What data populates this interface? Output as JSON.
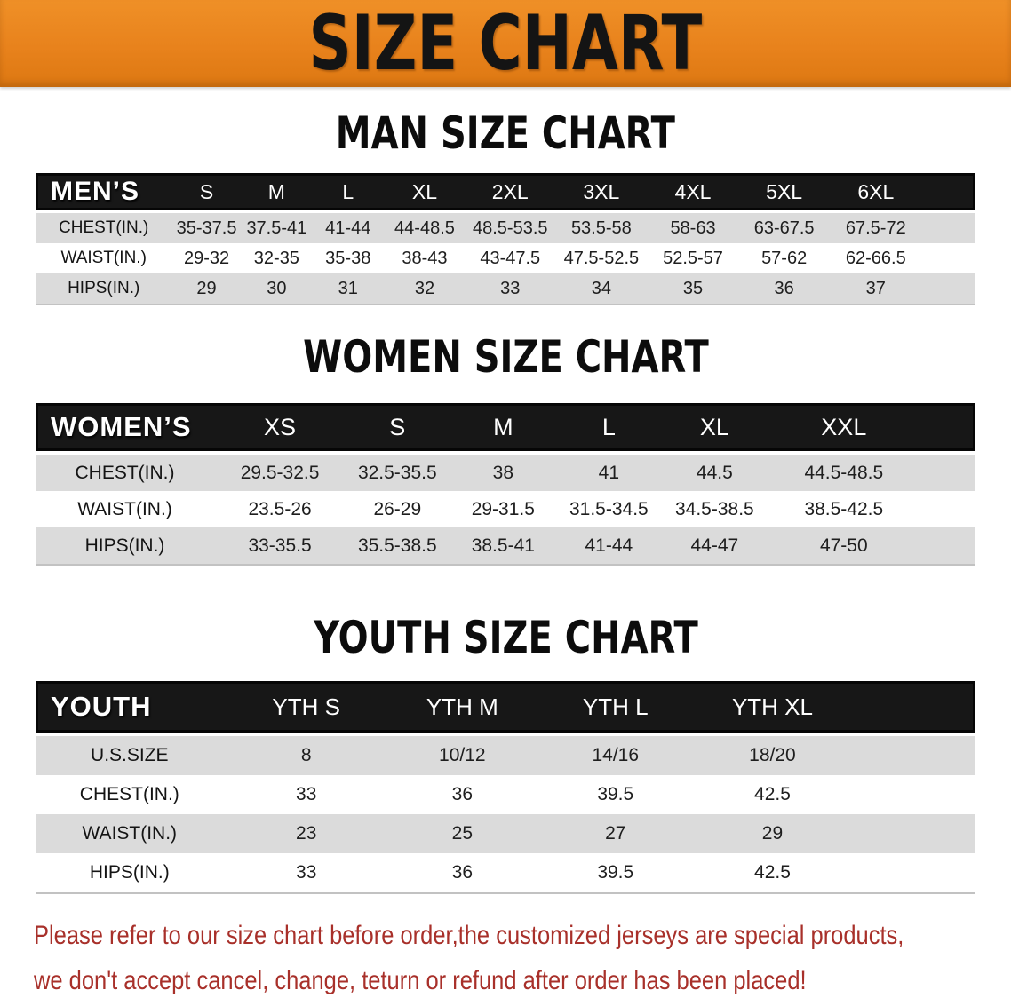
{
  "banner": {
    "title": "SIZE CHART"
  },
  "sections": [
    {
      "name": "men",
      "heading": "MAN SIZE CHART",
      "header_label": "MEN’S",
      "columns": [
        "S",
        "M",
        "L",
        "XL",
        "2XL",
        "3XL",
        "4XL",
        "5XL",
        "6XL"
      ],
      "rows": [
        {
          "label": "CHEST(IN.)",
          "values": [
            "35-37.5",
            "37.5-41",
            "41-44",
            "44-48.5",
            "48.5-53.5",
            "53.5-58",
            "58-63",
            "63-67.5",
            "67.5-72"
          ]
        },
        {
          "label": "WAIST(IN.)",
          "values": [
            "29-32",
            "32-35",
            "35-38",
            "38-43",
            "43-47.5",
            "47.5-52.5",
            "52.5-57",
            "57-62",
            "62-66.5"
          ]
        },
        {
          "label": "HIPS(IN.)",
          "values": [
            "29",
            "30",
            "31",
            "32",
            "33",
            "34",
            "35",
            "36",
            "37"
          ]
        }
      ]
    },
    {
      "name": "women",
      "heading": "WOMEN SIZE CHART",
      "header_label": "WOMEN’S",
      "columns": [
        "XS",
        "S",
        "M",
        "L",
        "XL",
        "XXL"
      ],
      "rows": [
        {
          "label": "CHEST(IN.)",
          "values": [
            "29.5-32.5",
            "32.5-35.5",
            "38",
            "41",
            "44.5",
            "44.5-48.5"
          ]
        },
        {
          "label": "WAIST(IN.)",
          "values": [
            "23.5-26",
            "26-29",
            "29-31.5",
            "31.5-34.5",
            "34.5-38.5",
            "38.5-42.5"
          ]
        },
        {
          "label": "HIPS(IN.)",
          "values": [
            "33-35.5",
            "35.5-38.5",
            "38.5-41",
            "41-44",
            "44-47",
            "47-50"
          ]
        }
      ]
    },
    {
      "name": "youth",
      "heading": "YOUTH SIZE CHART",
      "header_label": "YOUTH",
      "columns": [
        "YTH S",
        "YTH M",
        "YTH L",
        "YTH XL"
      ],
      "rows": [
        {
          "label": "U.S.SIZE",
          "values": [
            "8",
            "10/12",
            "14/16",
            "18/20"
          ]
        },
        {
          "label": "CHEST(IN.)",
          "values": [
            "33",
            "36",
            "39.5",
            "42.5"
          ]
        },
        {
          "label": "WAIST(IN.)",
          "values": [
            "23",
            "25",
            "27",
            "29"
          ]
        },
        {
          "label": "HIPS(IN.)",
          "values": [
            "33",
            "36",
            "39.5",
            "42.5"
          ]
        }
      ]
    }
  ],
  "footer": {
    "line1": "Please refer to our size chart before order,the customized jerseys are special products,",
    "line2": "we don't accept cancel, change, teturn or refund after order has been placed!"
  },
  "colors": {
    "banner_bg": "#E8821C",
    "banner_text": "#141414",
    "header_bar_bg": "#171717",
    "header_bar_text": "#FFFFFF",
    "row_stripe_gray": "#DBDBDB",
    "row_stripe_white": "#FFFFFF",
    "table_text": "#1E1E1E",
    "footer_text_red": "#A8302A"
  }
}
